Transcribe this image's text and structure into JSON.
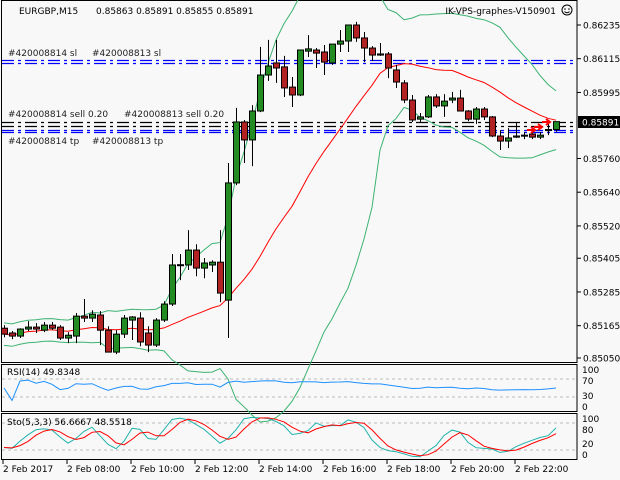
{
  "header": {
    "symbol_timeframe": "EURGBP,M15",
    "ohlc_text": "0.85863 0.85891 0.85855 0.85891",
    "indicator_name": "IK-VPS-graphes-V150901",
    "smiley_icon": "smiley-face-icon"
  },
  "current_price": "0.85891",
  "order_lines": [
    {
      "label": "#420008814 sl",
      "price": 0.8611,
      "color": "#0000ff",
      "style": "dash-dot"
    },
    {
      "label": "#420008813 sl",
      "price": 0.861,
      "color": "#0000ff",
      "style": "dash-dot"
    },
    {
      "label": "#420008814 sell 0.20",
      "price": 0.8589,
      "color": "#000000",
      "style": "dash-dot"
    },
    {
      "label": "#420008813 sell 0.20",
      "price": 0.85876,
      "color": "#000000",
      "style": "dash-dot"
    },
    {
      "label": "#420008814 tp",
      "price": 0.85862,
      "color": "#0000ff",
      "style": "dash-dot"
    },
    {
      "label": "#420008813 tp",
      "price": 0.85855,
      "color": "#0000ff",
      "style": "dash-dot"
    }
  ],
  "rsi": {
    "label": "RSI(14) 49.8348",
    "levels": [
      "100",
      "70",
      "30",
      "0"
    ],
    "color": "#1e90ff"
  },
  "stoch": {
    "label": "Sto(5,3,3) 56.6667 48.5518",
    "levels": [
      "100",
      "80",
      "20",
      "0"
    ],
    "main_color": "#20b2aa",
    "signal_color": "#ff0000"
  },
  "colors": {
    "bull": "#228b22",
    "bear": "#b22222",
    "ma": "#ff0000",
    "bands": "#3cb371",
    "background": "#f8f8f8"
  },
  "chart_data": {
    "type": "candlestick",
    "symbol": "EURGBP",
    "timeframe": "M15",
    "y_ticks": [
      "0.86235",
      "0.86115",
      "0.85995",
      "0.85760",
      "0.85640",
      "0.85520",
      "0.85405",
      "0.85285",
      "0.85165",
      "0.85050"
    ],
    "ylim": [
      0.8505,
      0.86235
    ],
    "x_ticks": [
      "2 Feb 2017",
      "2 Feb 08:00",
      "2 Feb 10:00",
      "2 Feb 12:00",
      "2 Feb 14:00",
      "2 Feb 16:00",
      "2 Feb 18:00",
      "2 Feb 20:00",
      "2 Feb 22:00"
    ],
    "candles_ohlc": [
      [
        0.85156,
        0.85167,
        0.85124,
        0.85135
      ],
      [
        0.85139,
        0.85146,
        0.85117,
        0.85128
      ],
      [
        0.85128,
        0.85156,
        0.85121,
        0.85153
      ],
      [
        0.85153,
        0.85181,
        0.85146,
        0.8516
      ],
      [
        0.8516,
        0.85174,
        0.85139,
        0.85153
      ],
      [
        0.85149,
        0.85178,
        0.85142,
        0.85167
      ],
      [
        0.85167,
        0.85178,
        0.85149,
        0.85156
      ],
      [
        0.8516,
        0.85167,
        0.85114,
        0.85121
      ],
      [
        0.85121,
        0.85142,
        0.85103,
        0.85131
      ],
      [
        0.85128,
        0.8521,
        0.85103,
        0.85199
      ],
      [
        0.85199,
        0.8526,
        0.85178,
        0.85192
      ],
      [
        0.85192,
        0.8522,
        0.85178,
        0.85206
      ],
      [
        0.85203,
        0.85217,
        0.85096,
        0.85149
      ],
      [
        0.85149,
        0.85163,
        0.85071,
        0.85071
      ],
      [
        0.85071,
        0.85149,
        0.85064,
        0.85135
      ],
      [
        0.85135,
        0.85203,
        0.85121,
        0.85192
      ],
      [
        0.85185,
        0.85199,
        0.85114,
        0.85196
      ],
      [
        0.85192,
        0.85213,
        0.85092,
        0.85107
      ],
      [
        0.85139,
        0.85163,
        0.85071,
        0.85096
      ],
      [
        0.85096,
        0.85192,
        0.85089,
        0.85185
      ],
      [
        0.85185,
        0.85252,
        0.85178,
        0.85242
      ],
      [
        0.85242,
        0.8542,
        0.85235,
        0.85381
      ],
      [
        0.85381,
        0.8542,
        0.85327,
        0.85382
      ],
      [
        0.85381,
        0.85505,
        0.85363,
        0.85434
      ],
      [
        0.85434,
        0.85455,
        0.85341,
        0.8537
      ],
      [
        0.8537,
        0.85406,
        0.85334,
        0.85388
      ],
      [
        0.85381,
        0.85398,
        0.85356,
        0.85391
      ],
      [
        0.85391,
        0.85505,
        0.85249,
        0.85281
      ],
      [
        0.85256,
        0.85744,
        0.85121,
        0.85673
      ],
      [
        0.85673,
        0.8594,
        0.85665,
        0.8589
      ],
      [
        0.8589,
        0.85897,
        0.85744,
        0.85826
      ],
      [
        0.85826,
        0.8595,
        0.85733,
        0.85929
      ],
      [
        0.85929,
        0.86157,
        0.85925,
        0.86057
      ],
      [
        0.86057,
        0.86182,
        0.86036,
        0.86089
      ],
      [
        0.861,
        0.86182,
        0.86029,
        0.86082
      ],
      [
        0.86086,
        0.86125,
        0.85979,
        0.86011
      ],
      [
        0.86014,
        0.8605,
        0.85943,
        0.85986
      ],
      [
        0.85986,
        0.86146,
        0.85982,
        0.86146
      ],
      [
        0.86142,
        0.86199,
        0.86121,
        0.8615
      ],
      [
        0.86146,
        0.86153,
        0.86082,
        0.86135
      ],
      [
        0.86139,
        0.86164,
        0.86057,
        0.86103
      ],
      [
        0.861,
        0.86167,
        0.86093,
        0.86167
      ],
      [
        0.86167,
        0.86217,
        0.86139,
        0.86178
      ],
      [
        0.86178,
        0.86235,
        0.86139,
        0.86235
      ],
      [
        0.86235,
        0.86246,
        0.86175,
        0.86189
      ],
      [
        0.86189,
        0.8621,
        0.86103,
        0.86153
      ],
      [
        0.86153,
        0.8616,
        0.86107,
        0.86128
      ],
      [
        0.86128,
        0.86171,
        0.86125,
        0.86132
      ],
      [
        0.86132,
        0.86139,
        0.86046,
        0.86082
      ],
      [
        0.86075,
        0.86093,
        0.86011,
        0.86032
      ],
      [
        0.86029,
        0.86039,
        0.85957,
        0.85968
      ],
      [
        0.85968,
        0.85986,
        0.8589,
        0.85897
      ],
      [
        0.859,
        0.85922,
        0.8589,
        0.85908
      ],
      [
        0.85908,
        0.85986,
        0.85904,
        0.85979
      ],
      [
        0.85979,
        0.85989,
        0.8594,
        0.85947
      ],
      [
        0.85947,
        0.85989,
        0.85908,
        0.85964
      ],
      [
        0.85968,
        0.85997,
        0.85957,
        0.85975
      ],
      [
        0.85975,
        0.86004,
        0.85929,
        0.85929
      ],
      [
        0.85929,
        0.85932,
        0.85893,
        0.859
      ],
      [
        0.859,
        0.85943,
        0.85883,
        0.85936
      ],
      [
        0.85936,
        0.85943,
        0.85897,
        0.85908
      ],
      [
        0.85908,
        0.85911,
        0.85836,
        0.8584
      ],
      [
        0.8584,
        0.85861,
        0.8579,
        0.85822
      ],
      [
        0.85822,
        0.85868,
        0.85797,
        0.85833
      ],
      [
        0.85836,
        0.85886,
        0.85833,
        0.8584
      ],
      [
        0.8584,
        0.85854,
        0.85829,
        0.85843
      ],
      [
        0.85847,
        0.85854,
        0.85829,
        0.85836
      ],
      [
        0.85836,
        0.85854,
        0.85829,
        0.85843
      ],
      [
        0.85861,
        0.8589,
        0.85843,
        0.85863
      ],
      [
        0.85863,
        0.85891,
        0.85855,
        0.85891
      ]
    ]
  }
}
